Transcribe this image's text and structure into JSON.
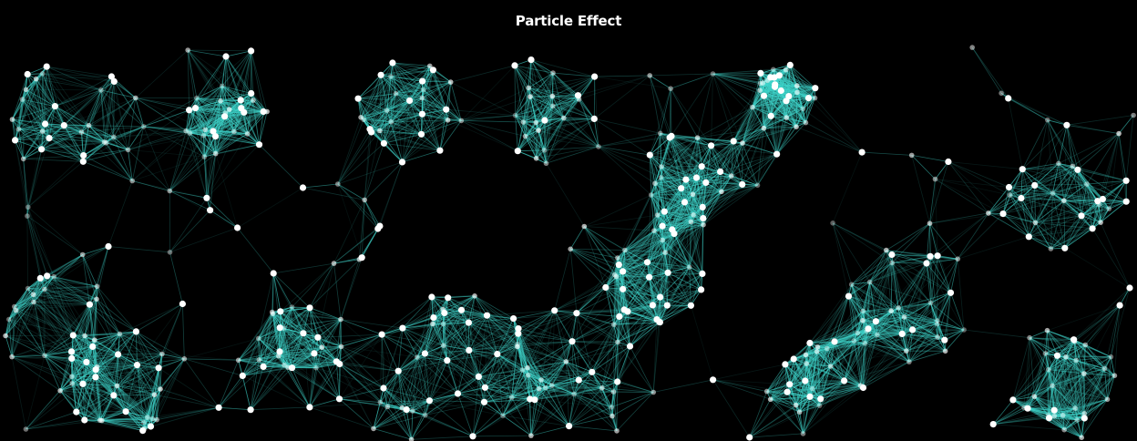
{
  "header": {
    "title": "Particle Effect"
  },
  "colors": {
    "background": "#000000",
    "line": "#3fd6cc",
    "particle": "#ffffff"
  }
}
